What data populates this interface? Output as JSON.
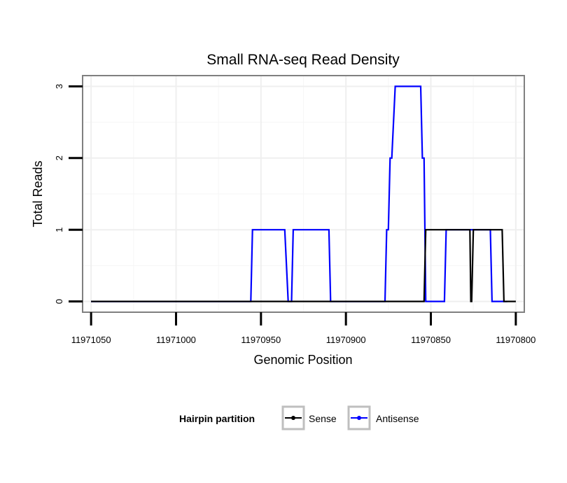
{
  "chart_data": {
    "type": "line",
    "title": "Small RNA-seq Read Density",
    "xlabel": "Genomic Position",
    "ylabel": "Total Reads",
    "xlim": [
      11971055,
      11970795
    ],
    "ylim": [
      -0.15,
      3.15
    ],
    "x_reversed": true,
    "xticks": [
      11971050,
      11971000,
      11970950,
      11970900,
      11970850,
      11970800
    ],
    "xtick_labels": [
      "11971050",
      "11971000",
      "11970950",
      "11970900",
      "11970850",
      "11970800"
    ],
    "yticks": [
      0,
      1,
      2,
      3
    ],
    "ytick_labels": [
      "0",
      "1",
      "2",
      "3"
    ],
    "grid": true,
    "legend": {
      "title": "Hairpin partition",
      "position": "bottom",
      "entries": [
        "Sense",
        "Antisense"
      ]
    },
    "series": [
      {
        "name": "Sense",
        "color": "#000000",
        "x": [
          11971050,
          11970854,
          11970853,
          11970827,
          11970826.5,
          11970826,
          11970825,
          11970808,
          11970807,
          11970800
        ],
        "y": [
          0,
          0,
          1,
          1,
          0,
          0,
          1,
          1,
          0,
          0
        ]
      },
      {
        "name": "Antisense",
        "color": "#0000ff",
        "x": [
          11971050,
          11970956,
          11970955,
          11970936,
          11970934,
          11970933,
          11970932,
          11970931,
          11970910,
          11970909,
          11970877,
          11970876,
          11970875,
          11970874,
          11970873,
          11970871,
          11970870,
          11970856,
          11970855,
          11970854,
          11970853,
          11970842,
          11970841,
          11970829,
          11970828,
          11970815,
          11970814,
          11970805
        ],
        "y": [
          0,
          0,
          1,
          1,
          0,
          0,
          0,
          1,
          1,
          0,
          0,
          1,
          1,
          2,
          2,
          3,
          3,
          3,
          2,
          2,
          0,
          0,
          1,
          1,
          1,
          1,
          0,
          0
        ]
      }
    ]
  }
}
